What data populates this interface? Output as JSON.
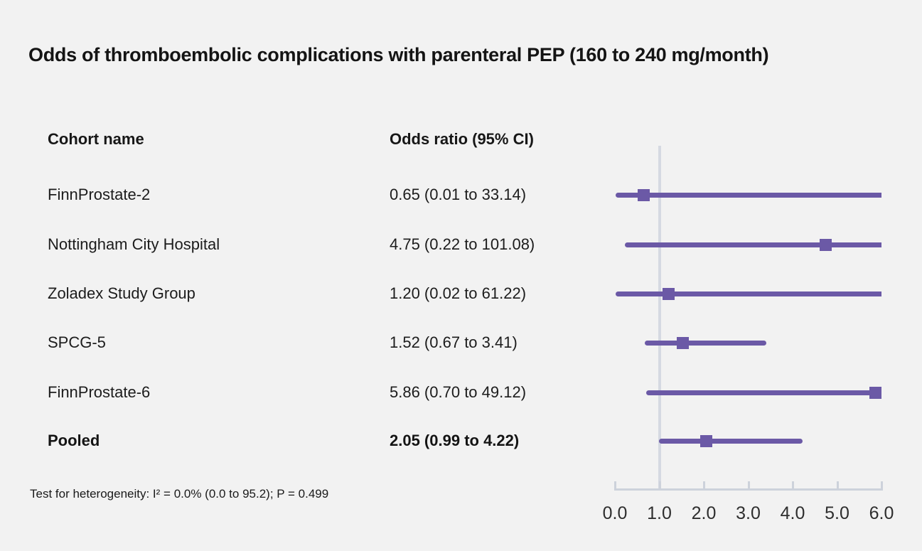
{
  "title": "Odds of thromboembolic complications with parenteral PEP (160 to 240 mg/month)",
  "table": {
    "col1_header": "Cohort name",
    "col2_header": "Odds ratio (95% CI)"
  },
  "footnote": "Test for heterogeneity: I² = 0.0% (0.0 to 95.2); P = 0.499",
  "chart_data": {
    "type": "forest",
    "title": "Odds of thromboembolic complications with parenteral PEP (160 to 240 mg/month)",
    "xlabel": "Odds ratio",
    "rows": [
      {
        "name": "FinnProstate-2",
        "label": "0.65 (0.01 to 33.14)",
        "or": 0.65,
        "ci_low": 0.01,
        "ci_high": 33.14,
        "bold": false
      },
      {
        "name": "Nottingham City Hospital",
        "label": "4.75 (0.22 to 101.08)",
        "or": 4.75,
        "ci_low": 0.22,
        "ci_high": 101.08,
        "bold": false
      },
      {
        "name": "Zoladex Study Group",
        "label": "1.20 (0.02 to 61.22)",
        "or": 1.2,
        "ci_low": 0.02,
        "ci_high": 61.22,
        "bold": false
      },
      {
        "name": "SPCG-5",
        "label": "1.52 (0.67 to 3.41)",
        "or": 1.52,
        "ci_low": 0.67,
        "ci_high": 3.41,
        "bold": false
      },
      {
        "name": "FinnProstate-6",
        "label": "5.86 (0.70 to 49.12)",
        "or": 5.86,
        "ci_low": 0.7,
        "ci_high": 49.12,
        "bold": false
      },
      {
        "name": "Pooled",
        "label": "2.05 (0.99 to 4.22)",
        "or": 2.05,
        "ci_low": 0.99,
        "ci_high": 4.22,
        "bold": true
      }
    ],
    "axis": {
      "min": 0,
      "max": 6,
      "tick_labels": [
        "0.0",
        "1.0",
        "2.0",
        "3.0",
        "4.0",
        "5.0",
        "6.0"
      ],
      "reference_line": 1.0,
      "grid": false
    },
    "colors": {
      "marker": "#6b59a6",
      "reference_line": "#d5d9e2",
      "axis": "#cdd2db",
      "text": "#1c1c1c",
      "background": "#f2f2f2"
    }
  }
}
